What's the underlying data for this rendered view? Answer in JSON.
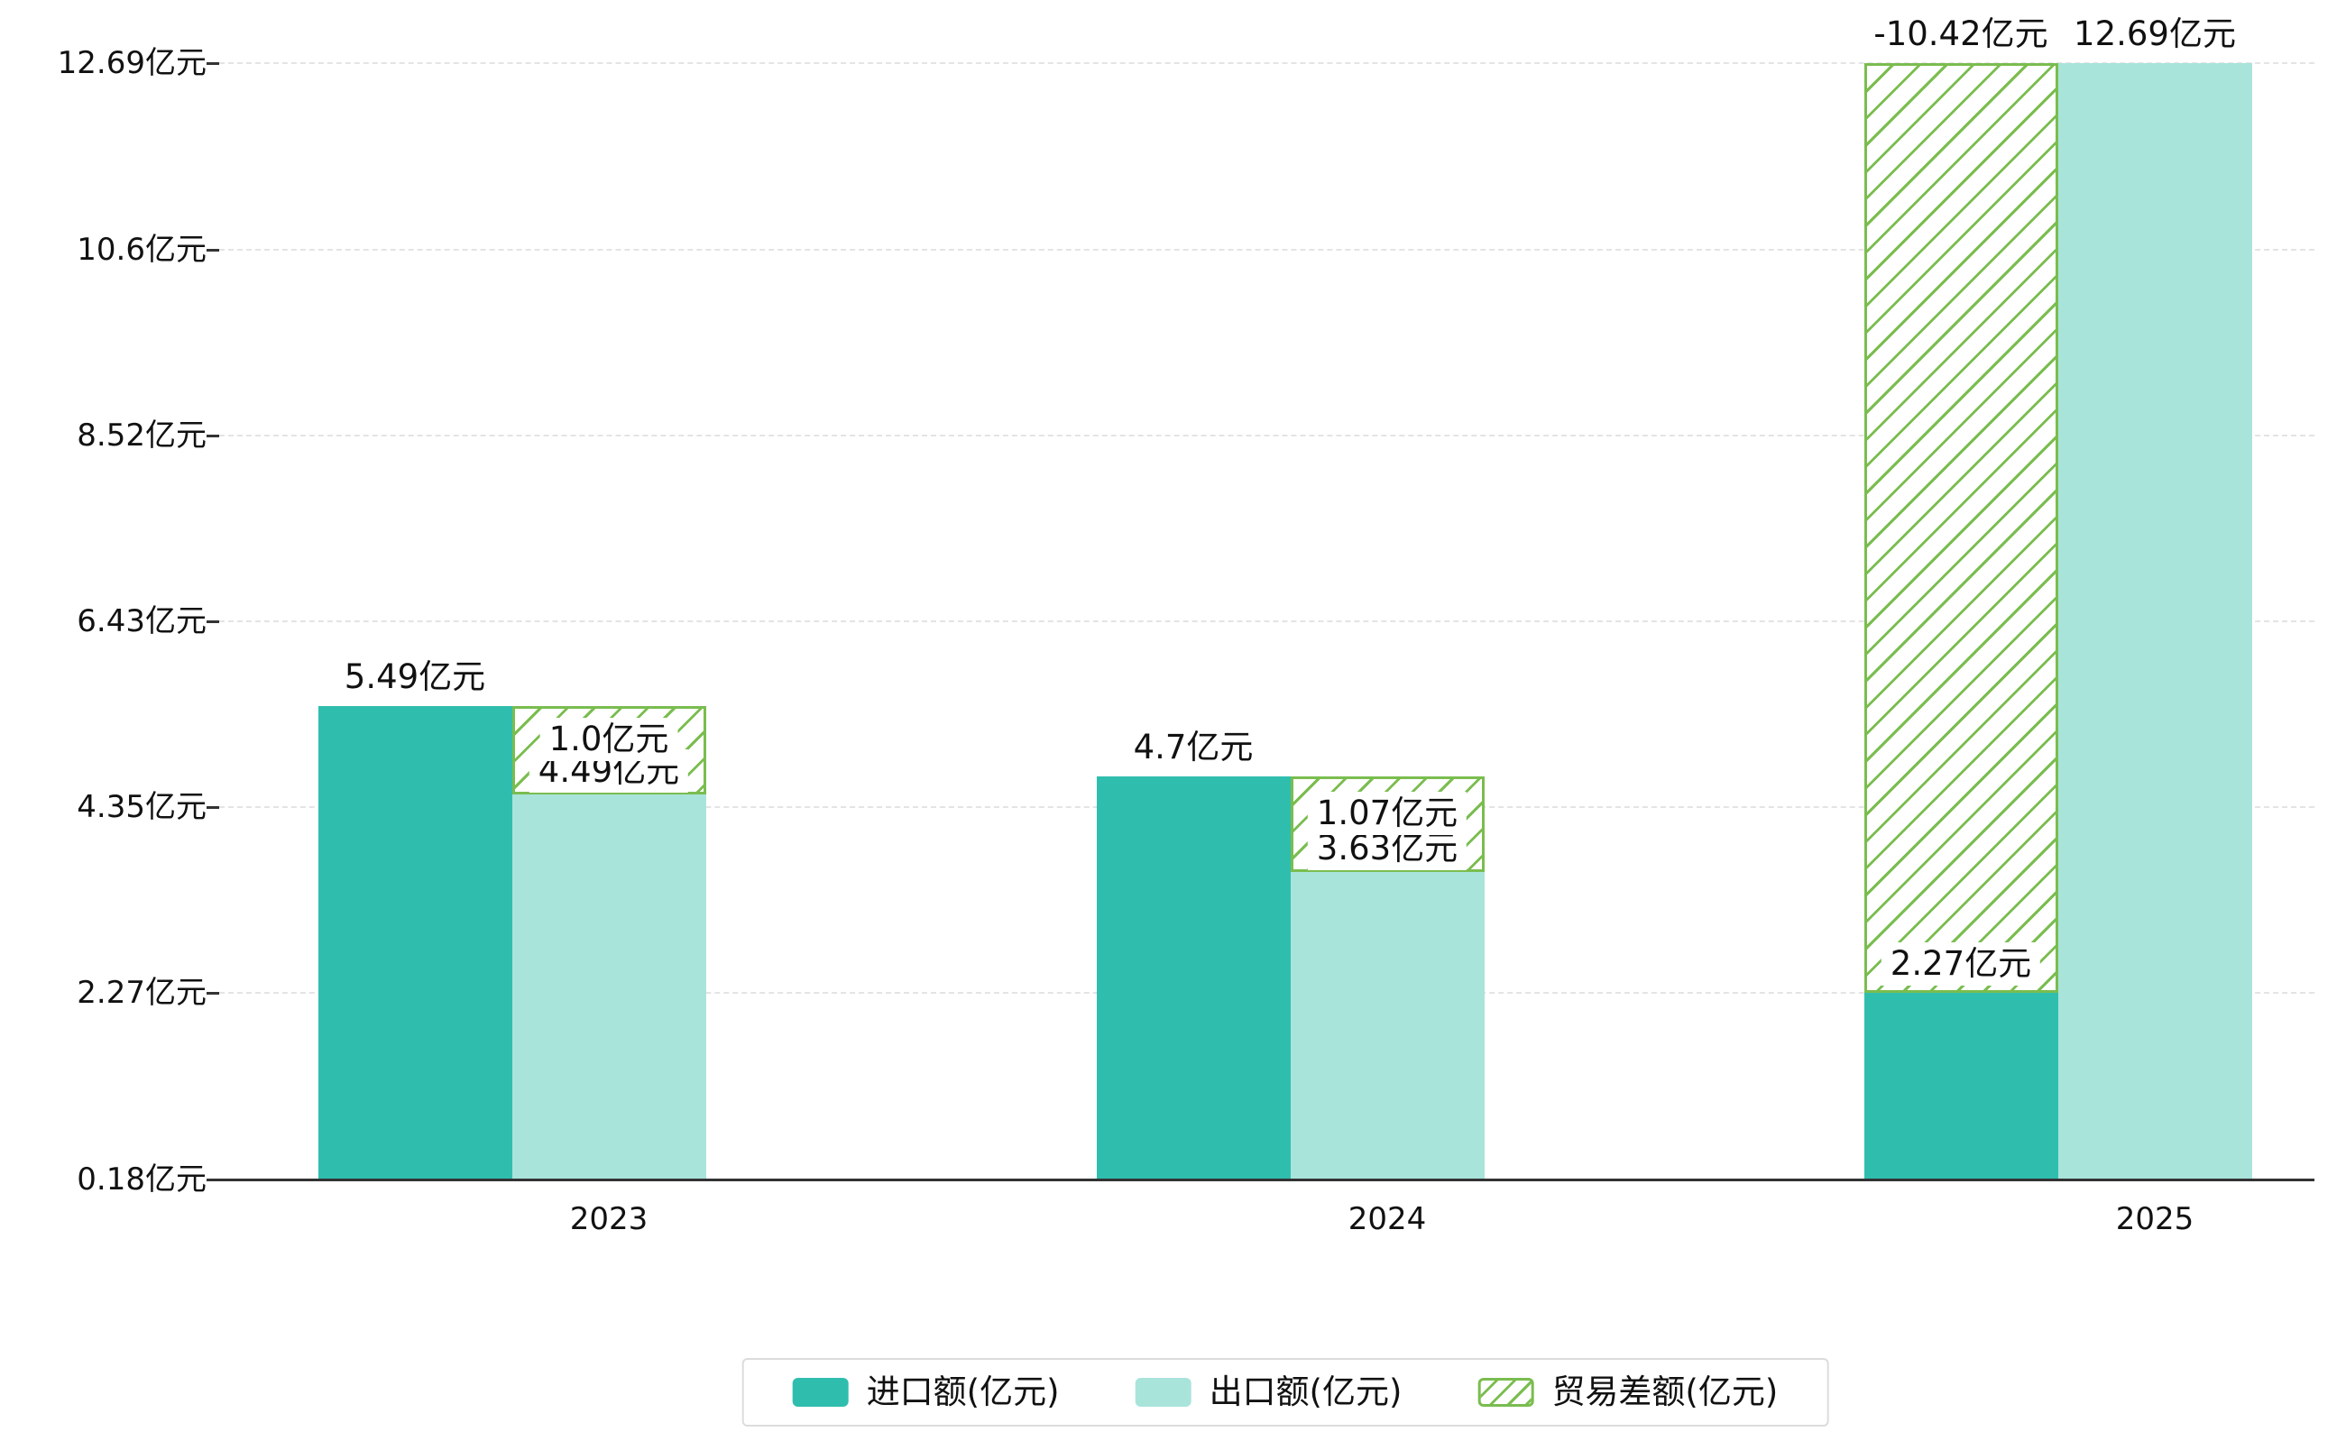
{
  "chart_data": {
    "type": "bar",
    "title": "",
    "categories": [
      "2023",
      "2024",
      "2025"
    ],
    "series": [
      {
        "name": "进口额(亿元)",
        "key": "import",
        "color": "#2fbeae",
        "values": [
          5.49,
          4.7,
          2.27
        ],
        "labels": [
          "5.49亿元",
          "4.7亿元",
          "2.27亿元"
        ]
      },
      {
        "name": "出口额(亿元)",
        "key": "export",
        "color": "#a9e4db",
        "values": [
          4.49,
          3.63,
          12.69
        ],
        "labels": [
          "4.49亿元",
          "3.63亿元",
          "12.69亿元"
        ]
      },
      {
        "name": "贸易差额(亿元)",
        "key": "balance",
        "color": "#7abd4f",
        "style": "hatched",
        "values": [
          1.0,
          1.07,
          -10.42
        ],
        "labels": [
          "1.0亿元",
          "1.07亿元",
          "-10.42亿元"
        ]
      }
    ],
    "y_ticks": {
      "values": [
        0.18,
        2.27,
        4.35,
        6.43,
        8.52,
        10.6,
        12.69
      ],
      "labels": [
        "0.18亿元",
        "2.27亿元",
        "4.35亿元",
        "6.43亿元",
        "8.52亿元",
        "10.6亿元",
        "12.69亿元"
      ]
    },
    "ylim": [
      0.18,
      12.69
    ],
    "grid": true,
    "gridline_style": "dashed",
    "legend_position": "bottom",
    "xlabel": "",
    "ylabel": ""
  },
  "colors": {
    "import": "#2fbeae",
    "export": "#a9e4db",
    "balance": "#7abd4f",
    "gridline": "#e4e4e4",
    "axis": "#333333",
    "text": "#111111",
    "legend_border": "#dcdcdc",
    "background": "#ffffff"
  }
}
